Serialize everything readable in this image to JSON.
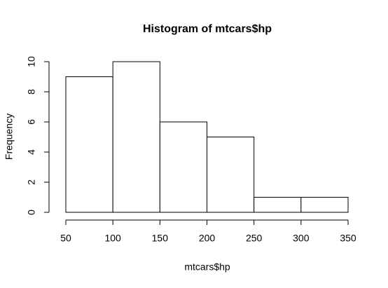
{
  "chart_data": {
    "type": "histogram",
    "title": "Histogram of mtcars$hp",
    "x_label": "mtcars$hp",
    "y_label": "Frequency",
    "bins": [
      50,
      100,
      150,
      200,
      250,
      300,
      350
    ],
    "values": [
      9,
      10,
      6,
      5,
      1,
      1
    ],
    "xlim": [
      50,
      350
    ],
    "ylim": [
      0,
      10
    ],
    "xticks": [
      50,
      100,
      150,
      200,
      250,
      300,
      350
    ],
    "yticks": [
      0,
      2,
      4,
      6,
      8,
      10
    ],
    "color": "#ffffff",
    "edgecolor": "#000000",
    "grid": false
  }
}
